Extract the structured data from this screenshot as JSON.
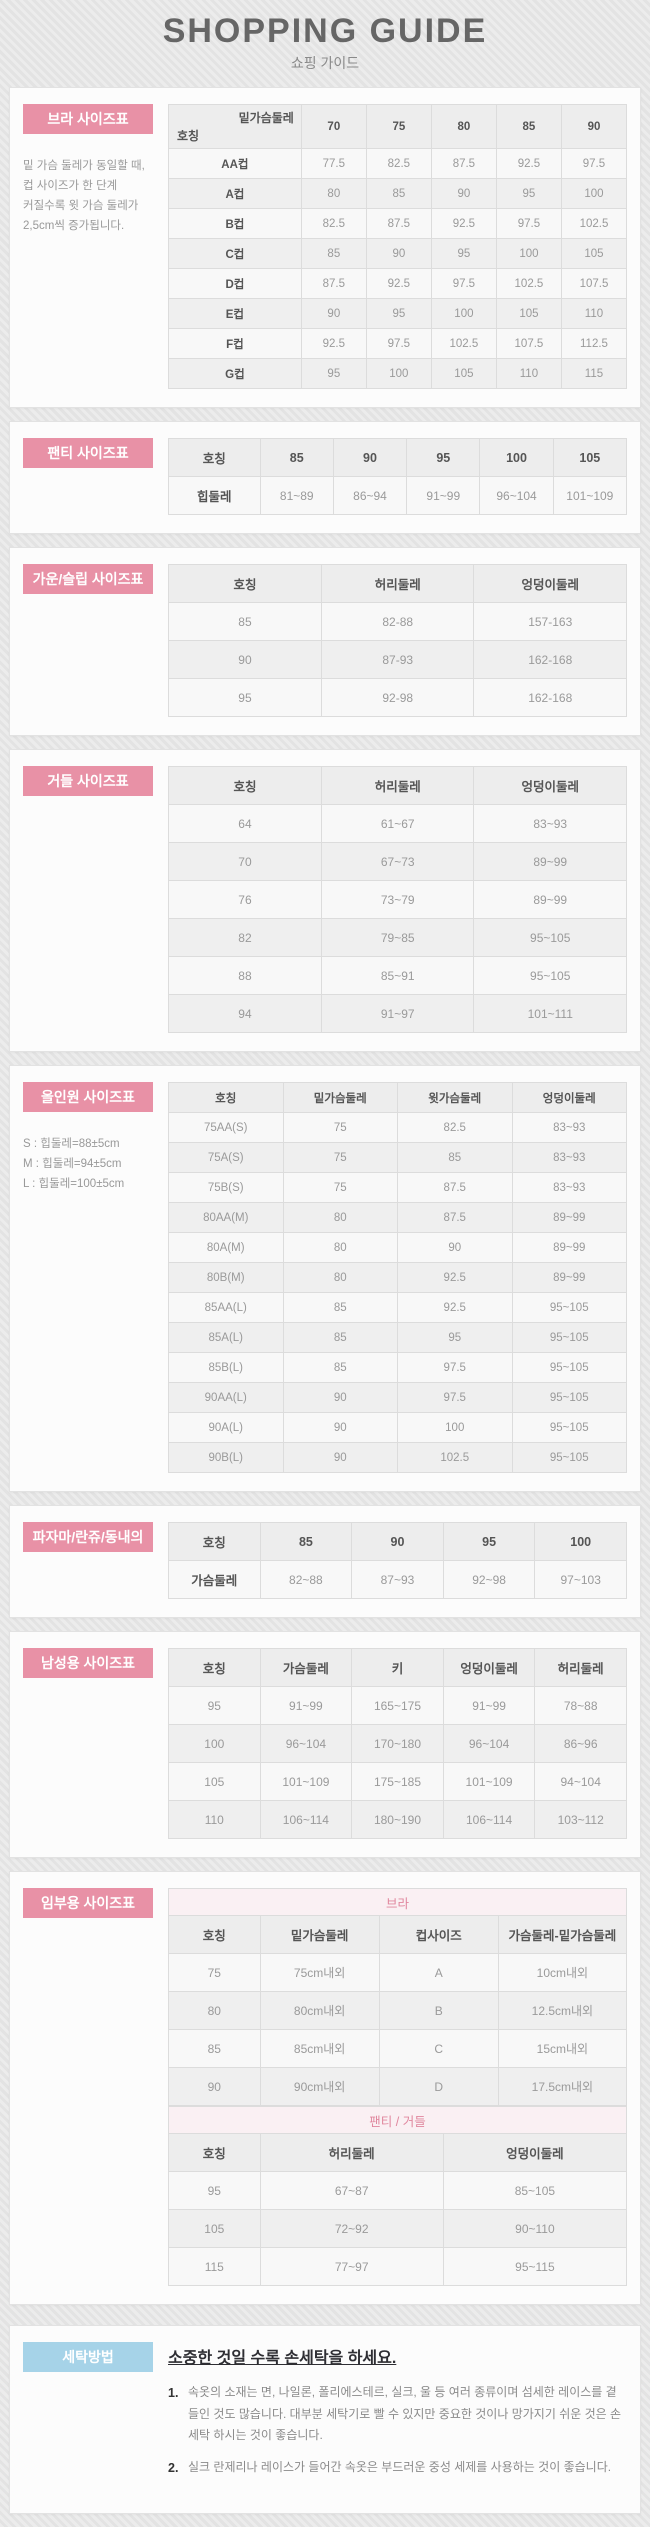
{
  "header": {
    "title": "SHOPPING GUIDE",
    "subtitle": "쇼핑 가이드"
  },
  "colors": {
    "accent_pink": "#e891a6",
    "accent_blue": "#a6d3e8",
    "band_pink_text": "#e0879e"
  },
  "sections": [
    {
      "id": "bra",
      "label": "브라 사이즈표",
      "label_style": "pink",
      "note": [
        "밑 가슴 둘레가 동일할 때,",
        "컵 사이즈가 한 단계",
        "커질수록 윗 가슴 둘레가",
        "2,5cm씩 증가됩니다."
      ],
      "tables": [
        {
          "dense": true,
          "diagonal": {
            "top": "밑가슴둘레",
            "bottom": "호칭"
          },
          "headers": [
            "70",
            "75",
            "80",
            "85",
            "90"
          ],
          "col_widths": [
            "29%",
            "14.2%",
            "14.2%",
            "14.2%",
            "14.2%",
            "14.2%"
          ],
          "row_header_bold": true,
          "rows": [
            [
              "AA컵",
              "77.5",
              "82.5",
              "87.5",
              "92.5",
              "97.5"
            ],
            [
              "A컵",
              "80",
              "85",
              "90",
              "95",
              "100"
            ],
            [
              "B컵",
              "82.5",
              "87.5",
              "92.5",
              "97.5",
              "102.5"
            ],
            [
              "C컵",
              "85",
              "90",
              "95",
              "100",
              "105"
            ],
            [
              "D컵",
              "87.5",
              "92.5",
              "97.5",
              "102.5",
              "107.5"
            ],
            [
              "E컵",
              "90",
              "95",
              "100",
              "105",
              "110"
            ],
            [
              "F컵",
              "92.5",
              "97.5",
              "102.5",
              "107.5",
              "112.5"
            ],
            [
              "G컵",
              "95",
              "100",
              "105",
              "110",
              "115"
            ]
          ]
        }
      ]
    },
    {
      "id": "panty",
      "label": "팬티 사이즈표",
      "label_style": "pink",
      "tables": [
        {
          "headers": [
            "호칭",
            "85",
            "90",
            "95",
            "100",
            "105"
          ],
          "col_widths": [
            "20%",
            "16%",
            "16%",
            "16%",
            "16%",
            "16%"
          ],
          "row_header_bold": true,
          "rows": [
            [
              "힙둘레",
              "81~89",
              "86~94",
              "91~99",
              "96~104",
              "101~109"
            ]
          ]
        }
      ]
    },
    {
      "id": "gown-slip",
      "label": "가운/슬립 사이즈표",
      "label_style": "pink",
      "tables": [
        {
          "headers": [
            "호칭",
            "허리둘레",
            "엉덩이둘레"
          ],
          "col_widths": [
            "33.4%",
            "33.3%",
            "33.3%"
          ],
          "row_header_bold": false,
          "rows": [
            [
              "85",
              "82-88",
              "157-163"
            ],
            [
              "90",
              "87-93",
              "162-168"
            ],
            [
              "95",
              "92-98",
              "162-168"
            ]
          ]
        }
      ]
    },
    {
      "id": "girdle",
      "label": "거들 사이즈표",
      "label_style": "pink",
      "tables": [
        {
          "headers": [
            "호칭",
            "허리둘레",
            "엉덩이둘레"
          ],
          "col_widths": [
            "33.4%",
            "33.3%",
            "33.3%"
          ],
          "row_header_bold": false,
          "rows": [
            [
              "64",
              "61~67",
              "83~93"
            ],
            [
              "70",
              "67~73",
              "89~99"
            ],
            [
              "76",
              "73~79",
              "89~99"
            ],
            [
              "82",
              "79~85",
              "95~105"
            ],
            [
              "88",
              "85~91",
              "95~105"
            ],
            [
              "94",
              "91~97",
              "101~111"
            ]
          ]
        }
      ]
    },
    {
      "id": "all-in-one",
      "label": "올인원 사이즈표",
      "label_style": "pink",
      "note": [
        "S : 힙둘레=88±5cm",
        "M : 힙둘레=94±5cm",
        "L : 힙둘레=100±5cm"
      ],
      "tables": [
        {
          "dense": true,
          "headers": [
            "호칭",
            "밑가슴둘레",
            "윗가슴둘레",
            "엉덩이둘레"
          ],
          "col_widths": [
            "25%",
            "25%",
            "25%",
            "25%"
          ],
          "row_header_bold": false,
          "rows": [
            [
              "75AA(S)",
              "75",
              "82.5",
              "83~93"
            ],
            [
              "75A(S)",
              "75",
              "85",
              "83~93"
            ],
            [
              "75B(S)",
              "75",
              "87.5",
              "83~93"
            ],
            [
              "80AA(M)",
              "80",
              "87.5",
              "89~99"
            ],
            [
              "80A(M)",
              "80",
              "90",
              "89~99"
            ],
            [
              "80B(M)",
              "80",
              "92.5",
              "89~99"
            ],
            [
              "85AA(L)",
              "85",
              "92.5",
              "95~105"
            ],
            [
              "85A(L)",
              "85",
              "95",
              "95~105"
            ],
            [
              "85B(L)",
              "85",
              "97.5",
              "95~105"
            ],
            [
              "90AA(L)",
              "90",
              "97.5",
              "95~105"
            ],
            [
              "90A(L)",
              "90",
              "100",
              "95~105"
            ],
            [
              "90B(L)",
              "90",
              "102.5",
              "95~105"
            ]
          ]
        }
      ]
    },
    {
      "id": "pajama",
      "label": "파자마/란쥬/동내의",
      "label_style": "pink",
      "tables": [
        {
          "headers": [
            "호칭",
            "85",
            "90",
            "95",
            "100"
          ],
          "col_widths": [
            "20%",
            "20%",
            "20%",
            "20%",
            "20%"
          ],
          "row_header_bold": true,
          "rows": [
            [
              "가슴둘레",
              "82~88",
              "87~93",
              "92~98",
              "97~103"
            ]
          ]
        }
      ]
    },
    {
      "id": "men",
      "label": "남성용 사이즈표",
      "label_style": "pink",
      "tables": [
        {
          "headers": [
            "호칭",
            "가슴둘레",
            "키",
            "엉덩이둘레",
            "허리둘레"
          ],
          "col_widths": [
            "20%",
            "20%",
            "20%",
            "20%",
            "20%"
          ],
          "row_header_bold": false,
          "rows": [
            [
              "95",
              "91~99",
              "165~175",
              "91~99",
              "78~88"
            ],
            [
              "100",
              "96~104",
              "170~180",
              "96~104",
              "86~96"
            ],
            [
              "105",
              "101~109",
              "175~185",
              "101~109",
              "94~104"
            ],
            [
              "110",
              "106~114",
              "180~190",
              "106~114",
              "103~112"
            ]
          ]
        }
      ]
    },
    {
      "id": "maternity",
      "label": "임부용 사이즈표",
      "label_style": "pink",
      "tables": [
        {
          "band": "브라",
          "headers": [
            "호칭",
            "밑가슴둘레",
            "컵사이즈",
            "가슴둘레-밑가슴둘레"
          ],
          "col_widths": [
            "20%",
            "26%",
            "26%",
            "28%"
          ],
          "row_header_bold": false,
          "rows": [
            [
              "75",
              "75cm내외",
              "A",
              "10cm내외"
            ],
            [
              "80",
              "80cm내외",
              "B",
              "12.5cm내외"
            ],
            [
              "85",
              "85cm내외",
              "C",
              "15cm내외"
            ],
            [
              "90",
              "90cm내외",
              "D",
              "17.5cm내외"
            ]
          ]
        },
        {
          "band": "팬티 / 거들",
          "headers": [
            "호칭",
            "허리둘레",
            "엉덩이둘레"
          ],
          "col_widths": [
            "20%",
            "40%",
            "40%"
          ],
          "row_header_bold": false,
          "rows": [
            [
              "95",
              "67~87",
              "85~105"
            ],
            [
              "105",
              "72~92",
              "90~110"
            ],
            [
              "115",
              "77~97",
              "95~115"
            ]
          ]
        }
      ]
    },
    {
      "id": "washing",
      "label": "세탁방법",
      "label_style": "blue",
      "washing": {
        "title": "소중한 것일 수록 손세탁을 하세요.",
        "items": [
          {
            "no": "1.",
            "text": "속옷의 소재는 면, 나일론, 폴리에스테르, 실크, 울 등 여러 종류이며 섬세한 레이스를 곁들인 것도 많습니다. 대부분 세탁기로 빨 수 있지만 중요한 것이나 망가지기 쉬운 것은 손세탁 하시는 것이 좋습니다."
          },
          {
            "no": "2.",
            "text": "실크 란제리나 레이스가 들어간 속옷은 부드러운 중성 세제를 사용하는 것이 좋습니다."
          }
        ]
      }
    }
  ]
}
